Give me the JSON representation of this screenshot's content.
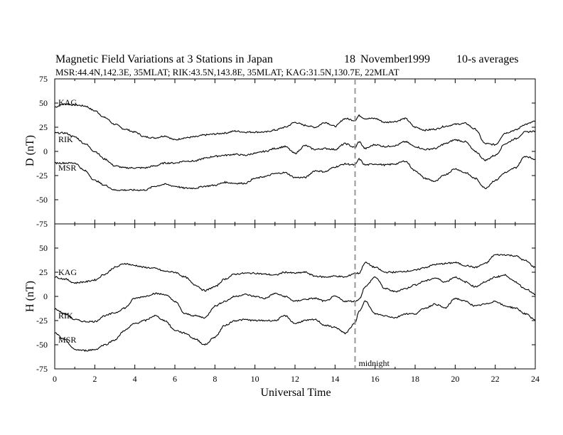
{
  "header": {
    "title": "Magnetic Field Variations at 3 Stations in Japan",
    "date_day": "18",
    "date_month": "November",
    "date_year": "1999",
    "averaging": "10-s averages",
    "stations_line": "MSR:44.4N,142.3E, 35MLAT;  RIK:43.5N,143.8E, 35MLAT;  KAG:31.5N,130.7E, 22MLAT"
  },
  "chart_data": [
    {
      "type": "line",
      "component": "D",
      "ylabel": "D (nT)",
      "ylim": [
        -75,
        75
      ],
      "yticks": [
        -75,
        -50,
        -25,
        0,
        25,
        50,
        75
      ],
      "xlim": [
        0,
        24
      ],
      "grid": false,
      "series": [
        {
          "name": "KAG",
          "x": [
            0,
            0.5,
            1,
            1.5,
            2,
            2.5,
            3,
            3.5,
            4,
            4.5,
            5,
            5.5,
            6,
            6.5,
            7,
            7.5,
            8,
            8.5,
            9,
            9.5,
            10,
            10.5,
            11,
            11.5,
            12,
            12.5,
            13,
            13.5,
            14,
            14.5,
            15,
            15.2,
            15.5,
            16,
            16.5,
            17,
            17.5,
            18,
            18.5,
            19,
            19.5,
            20,
            20.5,
            21,
            21.5,
            22,
            22.5,
            23,
            23.5,
            24
          ],
          "values": [
            46,
            49,
            48,
            47,
            42,
            35,
            28,
            23,
            20,
            15,
            14,
            16,
            12,
            14,
            15,
            17,
            18,
            19,
            21,
            20,
            20,
            20,
            22,
            25,
            30,
            27,
            25,
            30,
            26,
            34,
            32,
            37,
            34,
            34,
            30,
            31,
            34,
            25,
            22,
            23,
            26,
            28,
            29,
            23,
            8,
            7,
            19,
            22,
            28,
            31
          ]
        },
        {
          "name": "RIK",
          "x": [
            0,
            0.5,
            1,
            1.5,
            2,
            2.5,
            3,
            3.5,
            4,
            4.5,
            5,
            5.5,
            6,
            6.5,
            7,
            7.5,
            8,
            8.5,
            9,
            9.5,
            10,
            10.5,
            11,
            11.5,
            12,
            12.5,
            13,
            13.5,
            14,
            14.5,
            15,
            15.2,
            15.5,
            16,
            16.5,
            17,
            17.5,
            18,
            18.5,
            19,
            19.5,
            20,
            20.5,
            21,
            21.5,
            22,
            22.5,
            23,
            23.5,
            24
          ],
          "values": [
            19,
            19,
            15,
            8,
            0,
            -8,
            -15,
            -17,
            -17,
            -17,
            -15,
            -12,
            -12,
            -10,
            -10,
            -7,
            -5,
            -4,
            -3,
            -4,
            -2,
            0,
            3,
            5,
            -2,
            6,
            2,
            3,
            2,
            8,
            4,
            10,
            3,
            7,
            5,
            6,
            10,
            5,
            2,
            3,
            8,
            12,
            10,
            0,
            -9,
            -4,
            8,
            13,
            20,
            21
          ]
        },
        {
          "name": "MSR",
          "x": [
            0,
            0.5,
            1,
            1.5,
            2,
            2.5,
            3,
            3.5,
            4,
            4.5,
            5,
            5.5,
            6,
            6.5,
            7,
            7.5,
            8,
            8.5,
            9,
            9.5,
            10,
            10.5,
            11,
            11.5,
            12,
            12.5,
            13,
            13.5,
            14,
            14.5,
            15,
            15.2,
            15.5,
            16,
            16.5,
            17,
            17.5,
            18,
            18.5,
            19,
            19.5,
            20,
            20.5,
            21,
            21.5,
            22,
            22.5,
            23,
            23.5,
            24
          ],
          "values": [
            -12,
            -12,
            -12,
            -20,
            -30,
            -35,
            -40,
            -40,
            -40,
            -40,
            -36,
            -34,
            -36,
            -38,
            -38,
            -36,
            -35,
            -32,
            -33,
            -33,
            -28,
            -26,
            -23,
            -22,
            -27,
            -27,
            -20,
            -21,
            -16,
            -13,
            -14,
            -8,
            -14,
            -13,
            -14,
            -13,
            -10,
            -20,
            -28,
            -31,
            -24,
            -18,
            -22,
            -28,
            -38,
            -30,
            -22,
            -17,
            -5,
            -8
          ]
        }
      ]
    },
    {
      "type": "line",
      "component": "H",
      "ylabel": "H (nT)",
      "xlabel": "Universal Time",
      "ylim": [
        -75,
        75
      ],
      "yticks": [
        -75,
        -50,
        -25,
        0,
        25,
        50,
        75
      ],
      "xlim": [
        0,
        24
      ],
      "xticks": [
        0,
        2,
        4,
        6,
        8,
        10,
        12,
        14,
        16,
        18,
        20,
        22,
        24
      ],
      "grid": false,
      "series": [
        {
          "name": "KAG",
          "x": [
            0,
            0.5,
            1,
            1.5,
            2,
            2.5,
            3,
            3.5,
            4,
            4.5,
            5,
            5.5,
            6,
            6.5,
            7,
            7.5,
            8,
            8.5,
            9,
            9.5,
            10,
            10.5,
            11,
            11.5,
            12,
            12.5,
            13,
            13.5,
            14,
            14.5,
            15,
            15.2,
            15.5,
            16,
            16.5,
            17,
            17.5,
            18,
            18.5,
            19,
            19.5,
            20,
            20.5,
            21,
            21.5,
            22,
            22.5,
            23,
            23.5,
            24
          ],
          "values": [
            20,
            18,
            14,
            15,
            17,
            23,
            30,
            34,
            32,
            30,
            29,
            26,
            25,
            20,
            12,
            6,
            10,
            18,
            23,
            24,
            24,
            23,
            22,
            25,
            24,
            25,
            21,
            20,
            21,
            20,
            24,
            24,
            35,
            30,
            25,
            25,
            26,
            27,
            30,
            33,
            34,
            35,
            32,
            30,
            34,
            43,
            43,
            42,
            37,
            30
          ]
        },
        {
          "name": "RIK",
          "x": [
            0,
            0.5,
            1,
            1.5,
            2,
            2.5,
            3,
            3.5,
            4,
            4.5,
            5,
            5.5,
            6,
            6.5,
            7,
            7.5,
            8,
            8.5,
            9,
            9.5,
            10,
            10.5,
            11,
            11.5,
            12,
            12.5,
            13,
            13.5,
            14,
            14.5,
            15,
            15.2,
            15.5,
            16,
            16.5,
            17,
            17.5,
            18,
            18.5,
            19,
            19.5,
            20,
            20.5,
            21,
            21.5,
            22,
            22.5,
            23,
            23.5,
            24
          ],
          "values": [
            -13,
            -18,
            -24,
            -26,
            -26,
            -20,
            -17,
            -12,
            -2,
            0,
            3,
            2,
            -5,
            -18,
            -20,
            -22,
            -10,
            -5,
            0,
            2,
            0,
            -2,
            3,
            0,
            -5,
            -3,
            -2,
            -5,
            0,
            -5,
            -5,
            -3,
            10,
            20,
            8,
            5,
            8,
            12,
            16,
            19,
            15,
            20,
            15,
            10,
            15,
            20,
            22,
            15,
            8,
            2
          ]
        },
        {
          "name": "MSR",
          "x": [
            0,
            0.5,
            1,
            1.5,
            2,
            2.5,
            3,
            3.5,
            4,
            4.5,
            5,
            5.5,
            6,
            6.5,
            7,
            7.5,
            8,
            8.5,
            9,
            9.5,
            10,
            10.5,
            11,
            11.5,
            12,
            12.5,
            13,
            13.5,
            14,
            14.5,
            15,
            15.2,
            15.5,
            16,
            16.5,
            17,
            17.5,
            18,
            18.5,
            19,
            19.5,
            20,
            20.5,
            21,
            21.5,
            22,
            22.5,
            23,
            23.5,
            24
          ],
          "values": [
            -38,
            -45,
            -55,
            -56,
            -55,
            -50,
            -45,
            -35,
            -28,
            -25,
            -20,
            -25,
            -35,
            -38,
            -44,
            -50,
            -42,
            -30,
            -25,
            -24,
            -25,
            -25,
            -25,
            -20,
            -28,
            -25,
            -24,
            -30,
            -32,
            -38,
            -28,
            -15,
            -5,
            -18,
            -20,
            -22,
            -18,
            -18,
            -12,
            -8,
            -12,
            -2,
            -5,
            -10,
            -8,
            -5,
            -10,
            -12,
            -18,
            -24
          ]
        }
      ]
    }
  ],
  "annotations": {
    "midnight_label": "midnight",
    "midnight_ut": 15,
    "line_style": "dashed grey"
  }
}
